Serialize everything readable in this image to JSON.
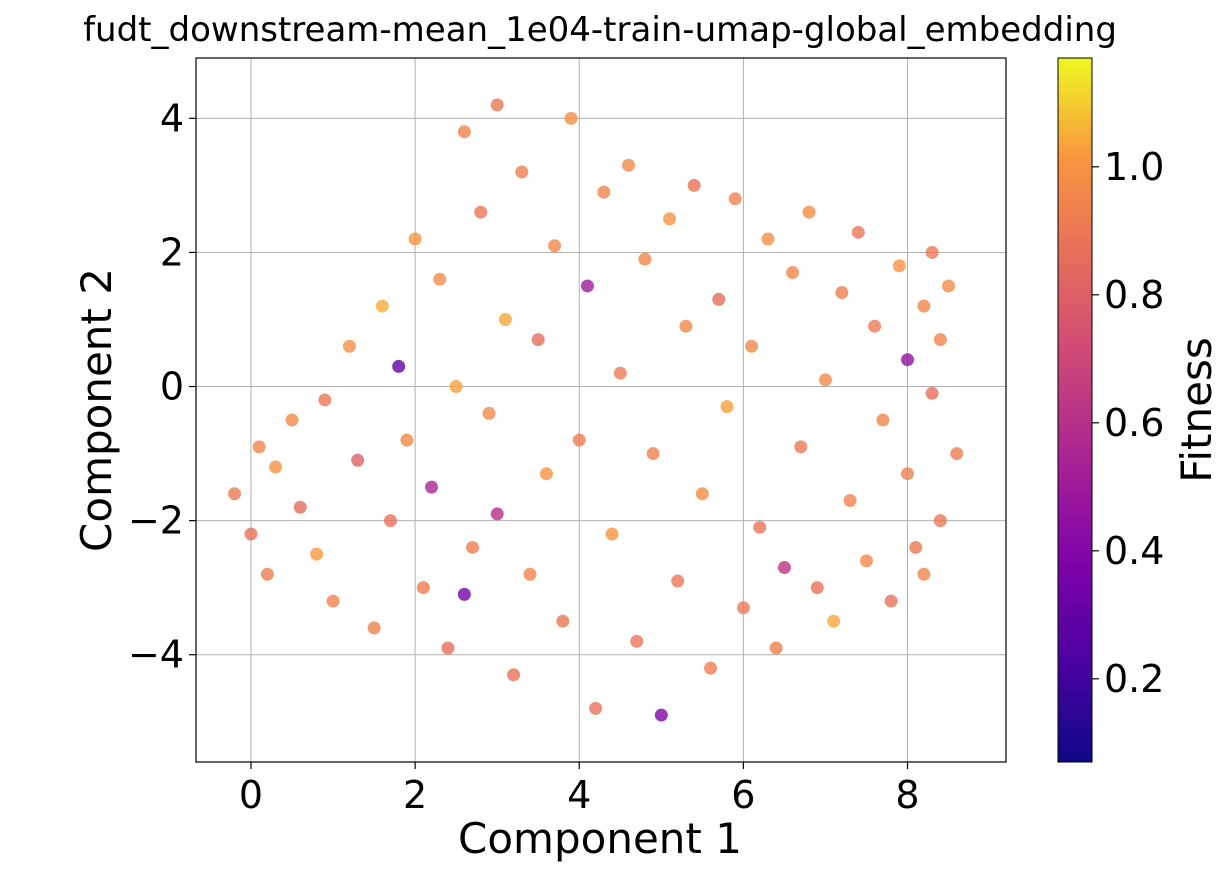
{
  "chart_data": {
    "type": "scatter",
    "title": "fudt_downstream-mean_1e04-train-umap-global_embedding",
    "xlabel": "Component 1",
    "ylabel": "Component 2",
    "xlim": [
      -0.67,
      9.2
    ],
    "ylim": [
      -5.6,
      4.9
    ],
    "xticks": [
      0,
      2,
      4,
      6,
      8
    ],
    "yticks": [
      4,
      2,
      0,
      -2,
      -4
    ],
    "xtick_labels": [
      "0",
      "2",
      "4",
      "6",
      "8"
    ],
    "ytick_labels": [
      "4",
      "2",
      "0",
      "−2",
      "−4"
    ],
    "grid": true,
    "colorbar": {
      "label": "Fitness",
      "colormap": "plasma",
      "range": [
        0.07,
        1.17
      ],
      "ticks": [
        0.2,
        0.4,
        0.6,
        0.8,
        1.0
      ],
      "tick_labels": [
        "0.2",
        "0.4",
        "0.6",
        "0.8",
        "1.0"
      ]
    },
    "point_alpha": 0.8,
    "series": [
      {
        "points": [
          [
            -0.2,
            -1.6,
            0.9
          ],
          [
            0.1,
            -0.9,
            0.95
          ],
          [
            0.0,
            -2.2,
            0.88
          ],
          [
            0.3,
            -1.2,
            1.0
          ],
          [
            0.2,
            -2.8,
            0.92
          ],
          [
            0.5,
            -0.5,
            0.97
          ],
          [
            0.6,
            -1.8,
            0.85
          ],
          [
            0.8,
            -2.5,
            1.02
          ],
          [
            0.9,
            -0.2,
            0.9
          ],
          [
            1.0,
            -3.2,
            0.94
          ],
          [
            1.2,
            0.6,
            0.99
          ],
          [
            1.3,
            -1.1,
            0.8
          ],
          [
            1.5,
            -3.6,
            0.93
          ],
          [
            1.6,
            1.2,
            1.05
          ],
          [
            1.7,
            -2.0,
            0.87
          ],
          [
            1.8,
            0.3,
            0.3
          ],
          [
            1.9,
            -0.8,
            0.96
          ],
          [
            2.0,
            2.2,
            1.0
          ],
          [
            2.1,
            -3.0,
            0.91
          ],
          [
            2.2,
            -1.5,
            0.55
          ],
          [
            2.3,
            1.6,
            0.98
          ],
          [
            2.4,
            -3.9,
            0.86
          ],
          [
            2.5,
            0.0,
            1.03
          ],
          [
            2.6,
            -3.1,
            0.35
          ],
          [
            2.6,
            3.8,
            0.95
          ],
          [
            2.7,
            -2.4,
            0.92
          ],
          [
            2.8,
            2.6,
            0.89
          ],
          [
            2.9,
            -0.4,
            0.97
          ],
          [
            3.0,
            4.2,
            0.9
          ],
          [
            3.0,
            -1.9,
            0.6
          ],
          [
            3.1,
            1.0,
            1.04
          ],
          [
            3.2,
            -4.3,
            0.88
          ],
          [
            3.3,
            3.2,
            0.93
          ],
          [
            3.4,
            -2.8,
            0.95
          ],
          [
            3.5,
            0.7,
            0.85
          ],
          [
            3.6,
            -1.3,
            1.0
          ],
          [
            3.7,
            2.1,
            0.96
          ],
          [
            3.8,
            -3.5,
            0.9
          ],
          [
            3.9,
            4.0,
            0.99
          ],
          [
            4.0,
            -0.8,
            0.92
          ],
          [
            4.1,
            1.5,
            0.5
          ],
          [
            4.2,
            -4.8,
            0.87
          ],
          [
            4.3,
            2.9,
            0.94
          ],
          [
            4.4,
            -2.2,
            1.01
          ],
          [
            4.5,
            0.2,
            0.91
          ],
          [
            4.6,
            3.3,
            0.97
          ],
          [
            4.7,
            -3.8,
            0.89
          ],
          [
            4.8,
            1.9,
            0.95
          ],
          [
            4.9,
            -1.0,
            0.93
          ],
          [
            5.0,
            -4.9,
            0.4
          ],
          [
            5.1,
            2.5,
            1.0
          ],
          [
            5.2,
            -2.9,
            0.9
          ],
          [
            5.3,
            0.9,
            0.96
          ],
          [
            5.4,
            3.0,
            0.88
          ],
          [
            5.5,
            -1.6,
            0.98
          ],
          [
            5.6,
            -4.2,
            0.92
          ],
          [
            5.7,
            1.3,
            0.85
          ],
          [
            5.8,
            -0.3,
            1.03
          ],
          [
            5.9,
            2.8,
            0.94
          ],
          [
            6.0,
            -3.3,
            0.91
          ],
          [
            6.1,
            0.6,
            0.97
          ],
          [
            6.2,
            -2.1,
            0.89
          ],
          [
            6.3,
            2.2,
            0.99
          ],
          [
            6.4,
            -3.9,
            0.93
          ],
          [
            6.5,
            -2.7,
            0.62
          ],
          [
            6.6,
            1.7,
            0.95
          ],
          [
            6.7,
            -0.9,
            0.9
          ],
          [
            6.8,
            2.6,
            0.98
          ],
          [
            6.9,
            -3.0,
            0.87
          ],
          [
            7.0,
            0.1,
            0.96
          ],
          [
            7.1,
            -3.5,
            1.04
          ],
          [
            7.2,
            1.4,
            0.92
          ],
          [
            7.3,
            -1.7,
            0.94
          ],
          [
            7.4,
            2.3,
            0.89
          ],
          [
            7.5,
            -2.6,
            0.97
          ],
          [
            7.6,
            0.9,
            0.91
          ],
          [
            7.7,
            -0.5,
            0.95
          ],
          [
            7.8,
            -3.2,
            0.88
          ],
          [
            7.9,
            1.8,
            1.0
          ],
          [
            8.0,
            0.4,
            0.45
          ],
          [
            8.0,
            -1.3,
            0.93
          ],
          [
            8.1,
            -2.4,
            0.9
          ],
          [
            8.2,
            1.2,
            0.96
          ],
          [
            8.3,
            -0.1,
            0.86
          ],
          [
            8.4,
            0.7,
            0.94
          ],
          [
            8.5,
            1.5,
            0.98
          ],
          [
            8.6,
            -1.0,
            0.92
          ],
          [
            8.4,
            -2.0,
            0.89
          ],
          [
            8.2,
            -2.8,
            0.95
          ],
          [
            8.3,
            2.0,
            0.91
          ]
        ]
      }
    ]
  }
}
